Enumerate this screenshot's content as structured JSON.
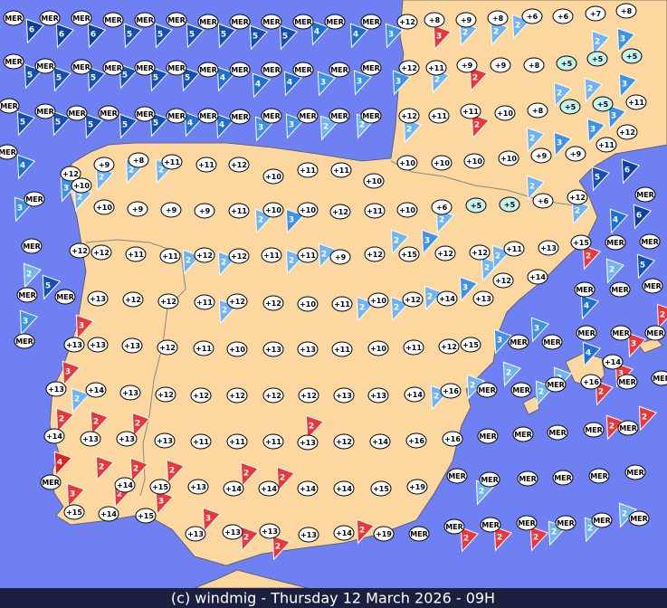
{
  "stations": [
    "MER",
    "MER",
    "MER",
    "MER",
    "MER",
    "MER",
    "MER",
    "MER",
    "MER",
    "MER",
    "MER",
    "MER",
    "+12",
    "+8",
    "+9",
    "+8",
    "+6",
    "+6",
    "+7",
    "+8",
    "MER",
    "MER",
    "MER",
    "MER",
    "MER",
    "MER",
    "MER",
    "MER",
    "MER",
    "MER",
    "MER",
    "MER",
    "+12",
    "+11",
    "+9",
    "+9",
    "+8",
    "+5",
    "+5",
    "+5",
    "MER",
    "MER",
    "MER",
    "MER",
    "MER",
    "MER",
    "MER",
    "MER",
    "MER",
    "MER",
    "MER",
    "MER",
    "+12",
    "+11",
    "+11",
    "+10",
    "+8",
    "+5",
    "+5",
    "+11",
    "MER",
    "+12",
    "+11",
    "+9",
    "+8",
    "+11",
    "+11",
    "+12",
    "+10",
    "+11",
    "+11",
    "+10",
    "+10",
    "+10",
    "+10",
    "+10",
    "+9",
    "+9",
    "+12",
    "+10",
    "MER",
    "+10",
    "+9",
    "+9",
    "+9",
    "+11",
    "+10",
    "+10",
    "+12",
    "+11",
    "+10",
    "+6",
    "+5",
    "+5",
    "+6",
    "+12",
    "MER",
    "MER",
    "+12",
    "+12",
    "+11",
    "+11",
    "+12",
    "+12",
    "+11",
    "+11",
    "+9",
    "+12",
    "+15",
    "+12",
    "+12",
    "+11",
    "+13",
    "+15",
    "MER",
    "MER",
    "MER",
    "MER",
    "+13",
    "+12",
    "+12",
    "+11",
    "+12",
    "+12",
    "+10",
    "+11",
    "+10",
    "+12",
    "+14",
    "+13",
    "+12",
    "+14",
    "MER",
    "MER",
    "MER",
    "MER",
    "+13",
    "+13",
    "+13",
    "+12",
    "+11",
    "+10",
    "+13",
    "+13",
    "+11",
    "+10",
    "+11",
    "+12",
    "+15",
    "MER",
    "MER",
    "MER",
    "MER",
    "MER",
    "+13",
    "+14",
    "+13",
    "+12",
    "+12",
    "+12",
    "+12",
    "+12",
    "+13",
    "+13",
    "+14",
    "+16",
    "MER",
    "MER",
    "MER",
    "+16",
    "+14",
    "MER",
    "MER",
    "+14",
    "+13",
    "+13",
    "+13",
    "+11",
    "+11",
    "+11",
    "+13",
    "+12",
    "+14",
    "+16",
    "+16",
    "MER",
    "MER",
    "MER",
    "MER",
    "MER",
    "MER",
    "+14",
    "+15",
    "+13",
    "+14",
    "+14",
    "+14",
    "+14",
    "+15",
    "+19",
    "MER",
    "MER",
    "MER",
    "MER",
    "MER",
    "MER",
    "+15",
    "+14",
    "+15",
    "+13",
    "+13",
    "+13",
    "+13",
    "+14",
    "+19",
    "MER",
    "MER",
    "MER",
    "MER",
    "MER",
    "MER",
    "MER"
  ],
  "winds": [
    {
      "force": 6,
      "color": "#0b3fa0"
    },
    {
      "force": 6,
      "color": "#0b3fa0"
    },
    {
      "force": 6,
      "color": "#0b3fa0"
    },
    {
      "force": 5,
      "color": "#1450b4"
    },
    {
      "force": 5,
      "color": "#1450b4"
    },
    {
      "force": 5,
      "color": "#1450b4"
    },
    {
      "force": 5,
      "color": "#1450b4"
    },
    {
      "force": 5,
      "color": "#1450b4"
    },
    {
      "force": 5,
      "color": "#1450b4"
    },
    {
      "force": 4,
      "color": "#1e6fd6"
    },
    {
      "force": 4,
      "color": "#1e6fd6"
    },
    {
      "force": 3,
      "color": "#3e92e8"
    },
    {
      "force": 3,
      "color": "#e8383c"
    },
    {
      "force": 2,
      "color": "#70b4f2"
    },
    {
      "force": 2,
      "color": "#70b4f2"
    },
    {
      "force": 2,
      "color": "#70b4f2"
    },
    {
      "force": 2,
      "color": "#70b4f2"
    },
    {
      "force": 3,
      "color": "#3e92e8"
    },
    {
      "force": 5,
      "color": "#1450b4"
    },
    {
      "force": 5,
      "color": "#1450b4"
    },
    {
      "force": 5,
      "color": "#1450b4"
    },
    {
      "force": 5,
      "color": "#1450b4"
    },
    {
      "force": 5,
      "color": "#1450b4"
    },
    {
      "force": 5,
      "color": "#1450b4"
    },
    {
      "force": 4,
      "color": "#1e6fd6"
    },
    {
      "force": 4,
      "color": "#1e6fd6"
    },
    {
      "force": 4,
      "color": "#1e6fd6"
    },
    {
      "force": 3,
      "color": "#3e92e8"
    },
    {
      "force": 3,
      "color": "#3e92e8"
    },
    {
      "force": 3,
      "color": "#3e92e8"
    },
    {
      "force": 2,
      "color": "#70b4f2"
    },
    {
      "force": 2,
      "color": "#e8383c"
    },
    {
      "force": 2,
      "color": "#70b4f2"
    },
    {
      "force": 2,
      "color": "#70b4f2"
    },
    {
      "force": 3,
      "color": "#3e92e8"
    },
    {
      "force": 5,
      "color": "#1450b4"
    },
    {
      "force": 5,
      "color": "#1450b4"
    },
    {
      "force": 5,
      "color": "#1450b4"
    },
    {
      "force": 5,
      "color": "#1450b4"
    },
    {
      "force": 5,
      "color": "#1450b4"
    },
    {
      "force": 4,
      "color": "#1e6fd6"
    },
    {
      "force": 4,
      "color": "#1e6fd6"
    },
    {
      "force": 3,
      "color": "#3e92e8"
    },
    {
      "force": 3,
      "color": "#3e92e8"
    },
    {
      "force": 2,
      "color": "#70b4f2"
    },
    {
      "force": 2,
      "color": "#70b4f2"
    },
    {
      "force": 2,
      "color": "#70b4f2"
    },
    {
      "force": 2,
      "color": "#e8383c"
    },
    {
      "force": 2,
      "color": "#70b4f2"
    },
    {
      "force": 3,
      "color": "#3e92e8"
    },
    {
      "force": 3,
      "color": "#3e92e8"
    },
    {
      "force": 3,
      "color": "#3e92e8"
    },
    {
      "force": 4,
      "color": "#1e6fd6"
    },
    {
      "force": 3,
      "color": "#3e92e8"
    },
    {
      "force": 2,
      "color": "#70b4f2"
    },
    {
      "force": 2,
      "color": "#70b4f2"
    },
    {
      "force": 2,
      "color": "#70b4f2"
    },
    {
      "force": 3,
      "color": "#3e92e8"
    },
    {
      "force": 2,
      "color": "#70b4f2"
    },
    {
      "force": 2,
      "color": "#70b4f2"
    },
    {
      "force": 3,
      "color": "#3e92e8"
    },
    {
      "force": 2,
      "color": "#70b4f2"
    },
    {
      "force": 2,
      "color": "#70b4f2"
    },
    {
      "force": 2,
      "color": "#70b4f2"
    },
    {
      "force": 5,
      "color": "#1450b4"
    },
    {
      "force": 6,
      "color": "#0b3fa0"
    },
    {
      "force": 4,
      "color": "#1e6fd6"
    },
    {
      "force": 6,
      "color": "#0b3fa0"
    },
    {
      "force": 2,
      "color": "#70b4f2"
    },
    {
      "force": 5,
      "color": "#1450b4"
    },
    {
      "force": 3,
      "color": "#3e92e8"
    },
    {
      "force": 2,
      "color": "#70b4f2"
    },
    {
      "force": 2,
      "color": "#70b4f2"
    },
    {
      "force": 2,
      "color": "#70b4f2"
    },
    {
      "force": 2,
      "color": "#70b4f2"
    },
    {
      "force": 2,
      "color": "#70b4f2"
    },
    {
      "force": 3,
      "color": "#3e92e8"
    },
    {
      "force": 2,
      "color": "#70b4f2"
    },
    {
      "force": 2,
      "color": "#70b4f2"
    },
    {
      "force": 2,
      "color": "#e8383c"
    },
    {
      "force": 2,
      "color": "#70b4f2"
    },
    {
      "force": 5,
      "color": "#1450b4"
    },
    {
      "force": 2,
      "color": "#70b4f2"
    },
    {
      "force": 2,
      "color": "#70b4f2"
    },
    {
      "force": 2,
      "color": "#70b4f2"
    },
    {
      "force": 2,
      "color": "#70b4f2"
    },
    {
      "force": 3,
      "color": "#3e92e8"
    },
    {
      "force": 4,
      "color": "#1e6fd6"
    },
    {
      "force": 2,
      "color": "#e8383c"
    },
    {
      "force": 3,
      "color": "#e8383c"
    },
    {
      "force": 3,
      "color": "#3e92e8"
    },
    {
      "force": 3,
      "color": "#3e92e8"
    },
    {
      "force": 4,
      "color": "#1e6fd6"
    },
    {
      "force": 3,
      "color": "#e8383c"
    },
    {
      "force": 3,
      "color": "#e8383c"
    },
    {
      "force": 2,
      "color": "#70b4f2"
    },
    {
      "force": 2,
      "color": "#70b4f2"
    },
    {
      "force": 2,
      "color": "#70b4f2"
    },
    {
      "force": 2,
      "color": "#70b4f2"
    },
    {
      "force": 2,
      "color": "#70b4f2"
    },
    {
      "force": 2,
      "color": "#70b4f2"
    },
    {
      "force": 2,
      "color": "#e8383c"
    },
    {
      "force": 3,
      "color": "#e8383c"
    },
    {
      "force": 2,
      "color": "#e8383c"
    },
    {
      "force": 2,
      "color": "#e8383c"
    },
    {
      "force": 2,
      "color": "#e8383c"
    },
    {
      "force": 2,
      "color": "#e8383c"
    },
    {
      "force": 2,
      "color": "#e8383c"
    },
    {
      "force": 2,
      "color": "#e8383c"
    },
    {
      "force": 4,
      "color": "#e02020"
    },
    {
      "force": 2,
      "color": "#e8383c"
    },
    {
      "force": 2,
      "color": "#e8383c"
    },
    {
      "force": 2,
      "color": "#e8383c"
    },
    {
      "force": 2,
      "color": "#e8383c"
    },
    {
      "force": 2,
      "color": "#e8383c"
    },
    {
      "force": 3,
      "color": "#e8383c"
    },
    {
      "force": 2,
      "color": "#e8383c"
    },
    {
      "force": 3,
      "color": "#e8383c"
    },
    {
      "force": 3,
      "color": "#e8383c"
    },
    {
      "force": 2,
      "color": "#e8383c"
    },
    {
      "force": 2,
      "color": "#e8383c"
    },
    {
      "force": 2,
      "color": "#e8383c"
    },
    {
      "force": 2,
      "color": "#e8383c"
    },
    {
      "force": 2,
      "color": "#e8383c"
    },
    {
      "force": 2,
      "color": "#e8383c"
    },
    {
      "force": 2,
      "color": "#70b4f2"
    },
    {
      "force": 2,
      "color": "#70b4f2"
    },
    {
      "force": 2,
      "color": "#70b4f2"
    },
    {
      "force": 2,
      "color": "#70b4f2"
    }
  ],
  "footer": "(c) windmig - Thursday 12 March 2026 - 09H"
}
